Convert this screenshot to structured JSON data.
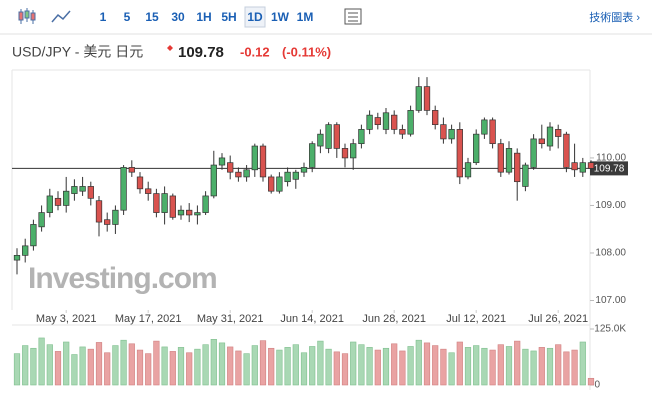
{
  "toolbar": {
    "buttons": [
      "1",
      "5",
      "15",
      "30",
      "1H",
      "5H",
      "1D",
      "1W",
      "1M"
    ],
    "active": "1D",
    "link": "技術圖表 ›"
  },
  "chart_data": {
    "type": "candlestick",
    "title": "USD/JPY - 美元 日元",
    "last_price": 109.78,
    "change": -0.12,
    "change_pct": "(-0.11%)",
    "watermark": "Investing.com",
    "categories": [
      null,
      null,
      null,
      null,
      null,
      null,
      "May 3, 2021",
      null,
      null,
      null,
      null,
      null,
      null,
      null,
      null,
      null,
      "May 17, 2021",
      null,
      null,
      null,
      null,
      null,
      null,
      null,
      null,
      null,
      "May 31, 2021",
      null,
      null,
      null,
      null,
      null,
      null,
      null,
      null,
      null,
      "Jun 14, 2021",
      null,
      null,
      null,
      null,
      null,
      null,
      null,
      null,
      null,
      "Jun 28, 2021",
      null,
      null,
      null,
      null,
      null,
      null,
      null,
      null,
      null,
      "Jul 12, 2021",
      null,
      null,
      null,
      null,
      null,
      null,
      null,
      null,
      null,
      "Jul 26, 2021",
      null,
      null,
      null,
      null
    ],
    "open": [
      107.85,
      107.95,
      108.15,
      108.55,
      108.85,
      109.15,
      109.0,
      109.25,
      109.3,
      109.4,
      109.1,
      108.7,
      108.6,
      108.9,
      109.8,
      109.6,
      109.35,
      109.25,
      108.85,
      109.2,
      108.8,
      108.9,
      108.8,
      108.85,
      109.2,
      109.85,
      109.9,
      109.7,
      109.6,
      109.75,
      110.25,
      109.6,
      109.3,
      109.5,
      109.55,
      109.7,
      109.8,
      110.25,
      110.2,
      110.7,
      110.2,
      110.0,
      110.3,
      110.6,
      110.85,
      110.6,
      110.9,
      110.6,
      110.5,
      111.0,
      111.5,
      111.0,
      110.7,
      110.4,
      110.6,
      109.6,
      109.9,
      110.5,
      110.8,
      110.3,
      109.7,
      110.1,
      109.4,
      109.8,
      110.4,
      110.25,
      110.6,
      110.5,
      109.9,
      109.7,
      109.9
    ],
    "high": [
      108.1,
      108.3,
      108.7,
      109.0,
      109.35,
      109.3,
      109.6,
      109.55,
      109.6,
      109.5,
      109.2,
      108.85,
      109.0,
      109.85,
      109.95,
      109.7,
      109.5,
      109.35,
      109.4,
      109.25,
      109.0,
      109.05,
      109.0,
      109.3,
      110.15,
      110.1,
      110.05,
      109.8,
      109.85,
      110.3,
      110.3,
      109.65,
      109.7,
      109.8,
      109.75,
      109.9,
      110.35,
      110.6,
      110.75,
      110.75,
      110.3,
      110.4,
      110.7,
      111.0,
      110.95,
      111.05,
      111.0,
      110.7,
      111.1,
      111.7,
      111.7,
      111.1,
      110.85,
      110.7,
      110.75,
      110.0,
      110.6,
      110.85,
      110.85,
      110.4,
      110.35,
      110.2,
      109.9,
      110.5,
      110.7,
      110.75,
      110.7,
      110.55,
      110.3,
      110.0,
      109.95
    ],
    "low": [
      107.55,
      107.8,
      108.05,
      108.45,
      108.75,
      108.9,
      108.85,
      109.1,
      109.2,
      109.0,
      108.35,
      108.45,
      108.4,
      108.8,
      109.6,
      109.25,
      109.1,
      108.75,
      108.6,
      108.7,
      108.7,
      108.65,
      108.6,
      108.8,
      109.15,
      109.75,
      109.55,
      109.5,
      109.5,
      109.6,
      109.5,
      109.25,
      109.25,
      109.4,
      109.35,
      109.6,
      109.7,
      110.1,
      110.1,
      110.0,
      109.8,
      109.75,
      110.2,
      110.5,
      110.6,
      110.5,
      110.5,
      110.4,
      110.45,
      110.95,
      110.9,
      110.6,
      110.3,
      110.3,
      109.45,
      109.55,
      109.85,
      110.4,
      110.2,
      109.6,
      109.65,
      109.1,
      109.3,
      109.75,
      110.2,
      110.15,
      110.2,
      109.7,
      109.6,
      109.6,
      109.7
    ],
    "close": [
      107.95,
      108.15,
      108.6,
      108.85,
      109.2,
      109.0,
      109.3,
      109.4,
      109.4,
      109.15,
      108.65,
      108.6,
      108.9,
      109.8,
      109.7,
      109.35,
      109.25,
      108.85,
      109.25,
      108.75,
      108.9,
      108.8,
      108.85,
      109.2,
      109.85,
      110.0,
      109.7,
      109.6,
      109.75,
      110.25,
      109.6,
      109.3,
      109.6,
      109.7,
      109.7,
      109.8,
      110.3,
      110.5,
      110.7,
      110.2,
      110.0,
      110.3,
      110.6,
      110.9,
      110.7,
      110.95,
      110.6,
      110.5,
      111.0,
      111.5,
      111.0,
      110.7,
      110.4,
      110.6,
      109.6,
      109.9,
      110.5,
      110.8,
      110.3,
      109.7,
      110.2,
      109.5,
      109.85,
      110.4,
      110.3,
      110.65,
      110.45,
      109.8,
      109.75,
      109.9,
      109.78
    ],
    "volume": [
      70000,
      88000,
      82000,
      105000,
      90000,
      75000,
      96000,
      68000,
      85000,
      80000,
      95000,
      72000,
      88000,
      100000,
      92000,
      78000,
      70000,
      98000,
      85000,
      75000,
      84000,
      72000,
      80000,
      90000,
      102000,
      94000,
      85000,
      76000,
      70000,
      88000,
      99000,
      82000,
      78000,
      84000,
      90000,
      72000,
      86000,
      98000,
      80000,
      74000,
      70000,
      96000,
      90000,
      84000,
      78000,
      82000,
      92000,
      76000,
      86000,
      100000,
      94000,
      88000,
      80000,
      72000,
      96000,
      84000,
      88000,
      82000,
      78000,
      90000,
      86000,
      98000,
      80000,
      76000,
      84000,
      82000,
      90000,
      74000,
      78000,
      96000,
      15000
    ],
    "ylim": [
      106.8,
      111.85
    ],
    "yticks": [
      {
        "value": 107,
        "label": "107.00"
      },
      {
        "value": 108,
        "label": "108.00"
      },
      {
        "value": 109,
        "label": "109.00"
      },
      {
        "value": 110,
        "label": "110.00"
      }
    ],
    "volume_ylim": [
      0,
      125000
    ],
    "volume_yticks": [
      0,
      {
        "value": 125000,
        "label": "125.0K"
      }
    ],
    "up_color": "#4caf6a",
    "down_color": "#d9534f",
    "up_volume_color": "#a9d8b4",
    "down_volume_color": "#e9a3a3"
  }
}
